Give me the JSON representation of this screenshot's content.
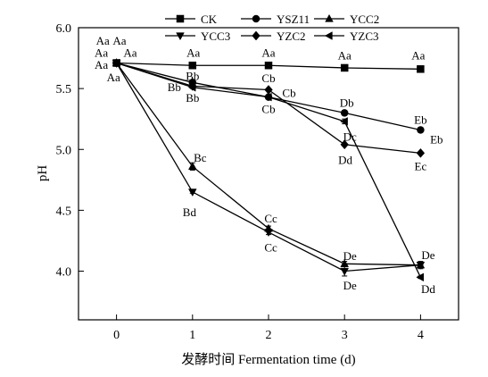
{
  "chart_data": {
    "type": "line",
    "title": "",
    "xlabel": "发酵时间 Fermentation time (d)",
    "ylabel": "pH",
    "x": [
      0,
      1,
      2,
      3,
      4
    ],
    "xlim": [
      -0.5,
      4.5
    ],
    "ylim": [
      3.6,
      6.0
    ],
    "yticks": [
      4.0,
      4.5,
      5.0,
      5.5,
      6.0
    ],
    "ytick_labels": [
      "4.0",
      "4.5",
      "5.0",
      "5.5",
      "6.0"
    ],
    "xticks": [
      0,
      1,
      2,
      3,
      4
    ],
    "xtick_labels": [
      "0",
      "1",
      "2",
      "3",
      "4"
    ],
    "grid": false,
    "legend_position": "top",
    "series": [
      {
        "name": "CK",
        "marker": "square",
        "values": [
          5.71,
          5.69,
          5.69,
          5.67,
          5.66
        ],
        "errors": [
          0,
          0.02,
          0.01,
          0.01,
          0.01
        ]
      },
      {
        "name": "YSZ11",
        "marker": "circle",
        "values": [
          5.71,
          5.55,
          5.43,
          5.3,
          5.16
        ],
        "errors": [
          0,
          0.01,
          0.01,
          0.02,
          0.02
        ]
      },
      {
        "name": "YCC2",
        "marker": "triangle-up",
        "values": [
          5.71,
          4.86,
          4.35,
          4.06,
          4.05
        ],
        "errors": [
          0,
          0.03,
          0.02,
          0.02,
          0.02
        ]
      },
      {
        "name": "YCC3",
        "marker": "triangle-down",
        "values": [
          5.71,
          4.65,
          4.32,
          4.0,
          4.05
        ],
        "errors": [
          0,
          0.01,
          0.02,
          0.04,
          0.03
        ]
      },
      {
        "name": "YZC2",
        "marker": "diamond",
        "values": [
          5.71,
          5.52,
          5.49,
          5.04,
          4.97
        ],
        "errors": [
          0,
          0.01,
          0.01,
          0.01,
          0.01
        ]
      },
      {
        "name": "YZC3",
        "marker": "triangle-left",
        "values": [
          5.71,
          5.51,
          5.43,
          5.23,
          3.95
        ],
        "errors": [
          0,
          0.01,
          0.01,
          0.02,
          0.01
        ]
      }
    ],
    "annotations": [
      {
        "text": "Aa",
        "x": -0.18,
        "y": 5.89
      },
      {
        "text": "Aa",
        "x": 0.04,
        "y": 5.89
      },
      {
        "text": "Aa",
        "x": -0.2,
        "y": 5.79
      },
      {
        "text": "Aa",
        "x": 0.18,
        "y": 5.79
      },
      {
        "text": "Aa",
        "x": -0.2,
        "y": 5.69
      },
      {
        "text": "Aa",
        "x": -0.04,
        "y": 5.59
      },
      {
        "text": "Aa",
        "x": 1.01,
        "y": 5.79
      },
      {
        "text": "Aa",
        "x": 2.0,
        "y": 5.79
      },
      {
        "text": "Aa",
        "x": 3.0,
        "y": 5.77
      },
      {
        "text": "Aa",
        "x": 3.97,
        "y": 5.77
      },
      {
        "text": "Bb",
        "x": 1.0,
        "y": 5.6
      },
      {
        "text": "Bb",
        "x": 0.76,
        "y": 5.51
      },
      {
        "text": "Bb",
        "x": 1.0,
        "y": 5.42
      },
      {
        "text": "Bc",
        "x": 1.1,
        "y": 4.93
      },
      {
        "text": "Bd",
        "x": 0.96,
        "y": 4.48
      },
      {
        "text": "Cb",
        "x": 2.0,
        "y": 5.58
      },
      {
        "text": "Cb",
        "x": 2.27,
        "y": 5.46
      },
      {
        "text": "Cb",
        "x": 2.0,
        "y": 5.33
      },
      {
        "text": "Cc",
        "x": 2.03,
        "y": 4.43
      },
      {
        "text": "Cc",
        "x": 2.03,
        "y": 4.19
      },
      {
        "text": "Db",
        "x": 3.03,
        "y": 5.38
      },
      {
        "text": "Dc",
        "x": 3.07,
        "y": 5.1
      },
      {
        "text": "Dd",
        "x": 3.01,
        "y": 4.91
      },
      {
        "text": "De",
        "x": 3.07,
        "y": 4.12
      },
      {
        "text": "De",
        "x": 3.07,
        "y": 3.88
      },
      {
        "text": "Eb",
        "x": 4.0,
        "y": 5.24
      },
      {
        "text": "Eb",
        "x": 4.21,
        "y": 5.08
      },
      {
        "text": "Ec",
        "x": 4.0,
        "y": 4.86
      },
      {
        "text": "De",
        "x": 4.1,
        "y": 4.13
      },
      {
        "text": "Dd",
        "x": 4.1,
        "y": 3.85
      }
    ]
  }
}
